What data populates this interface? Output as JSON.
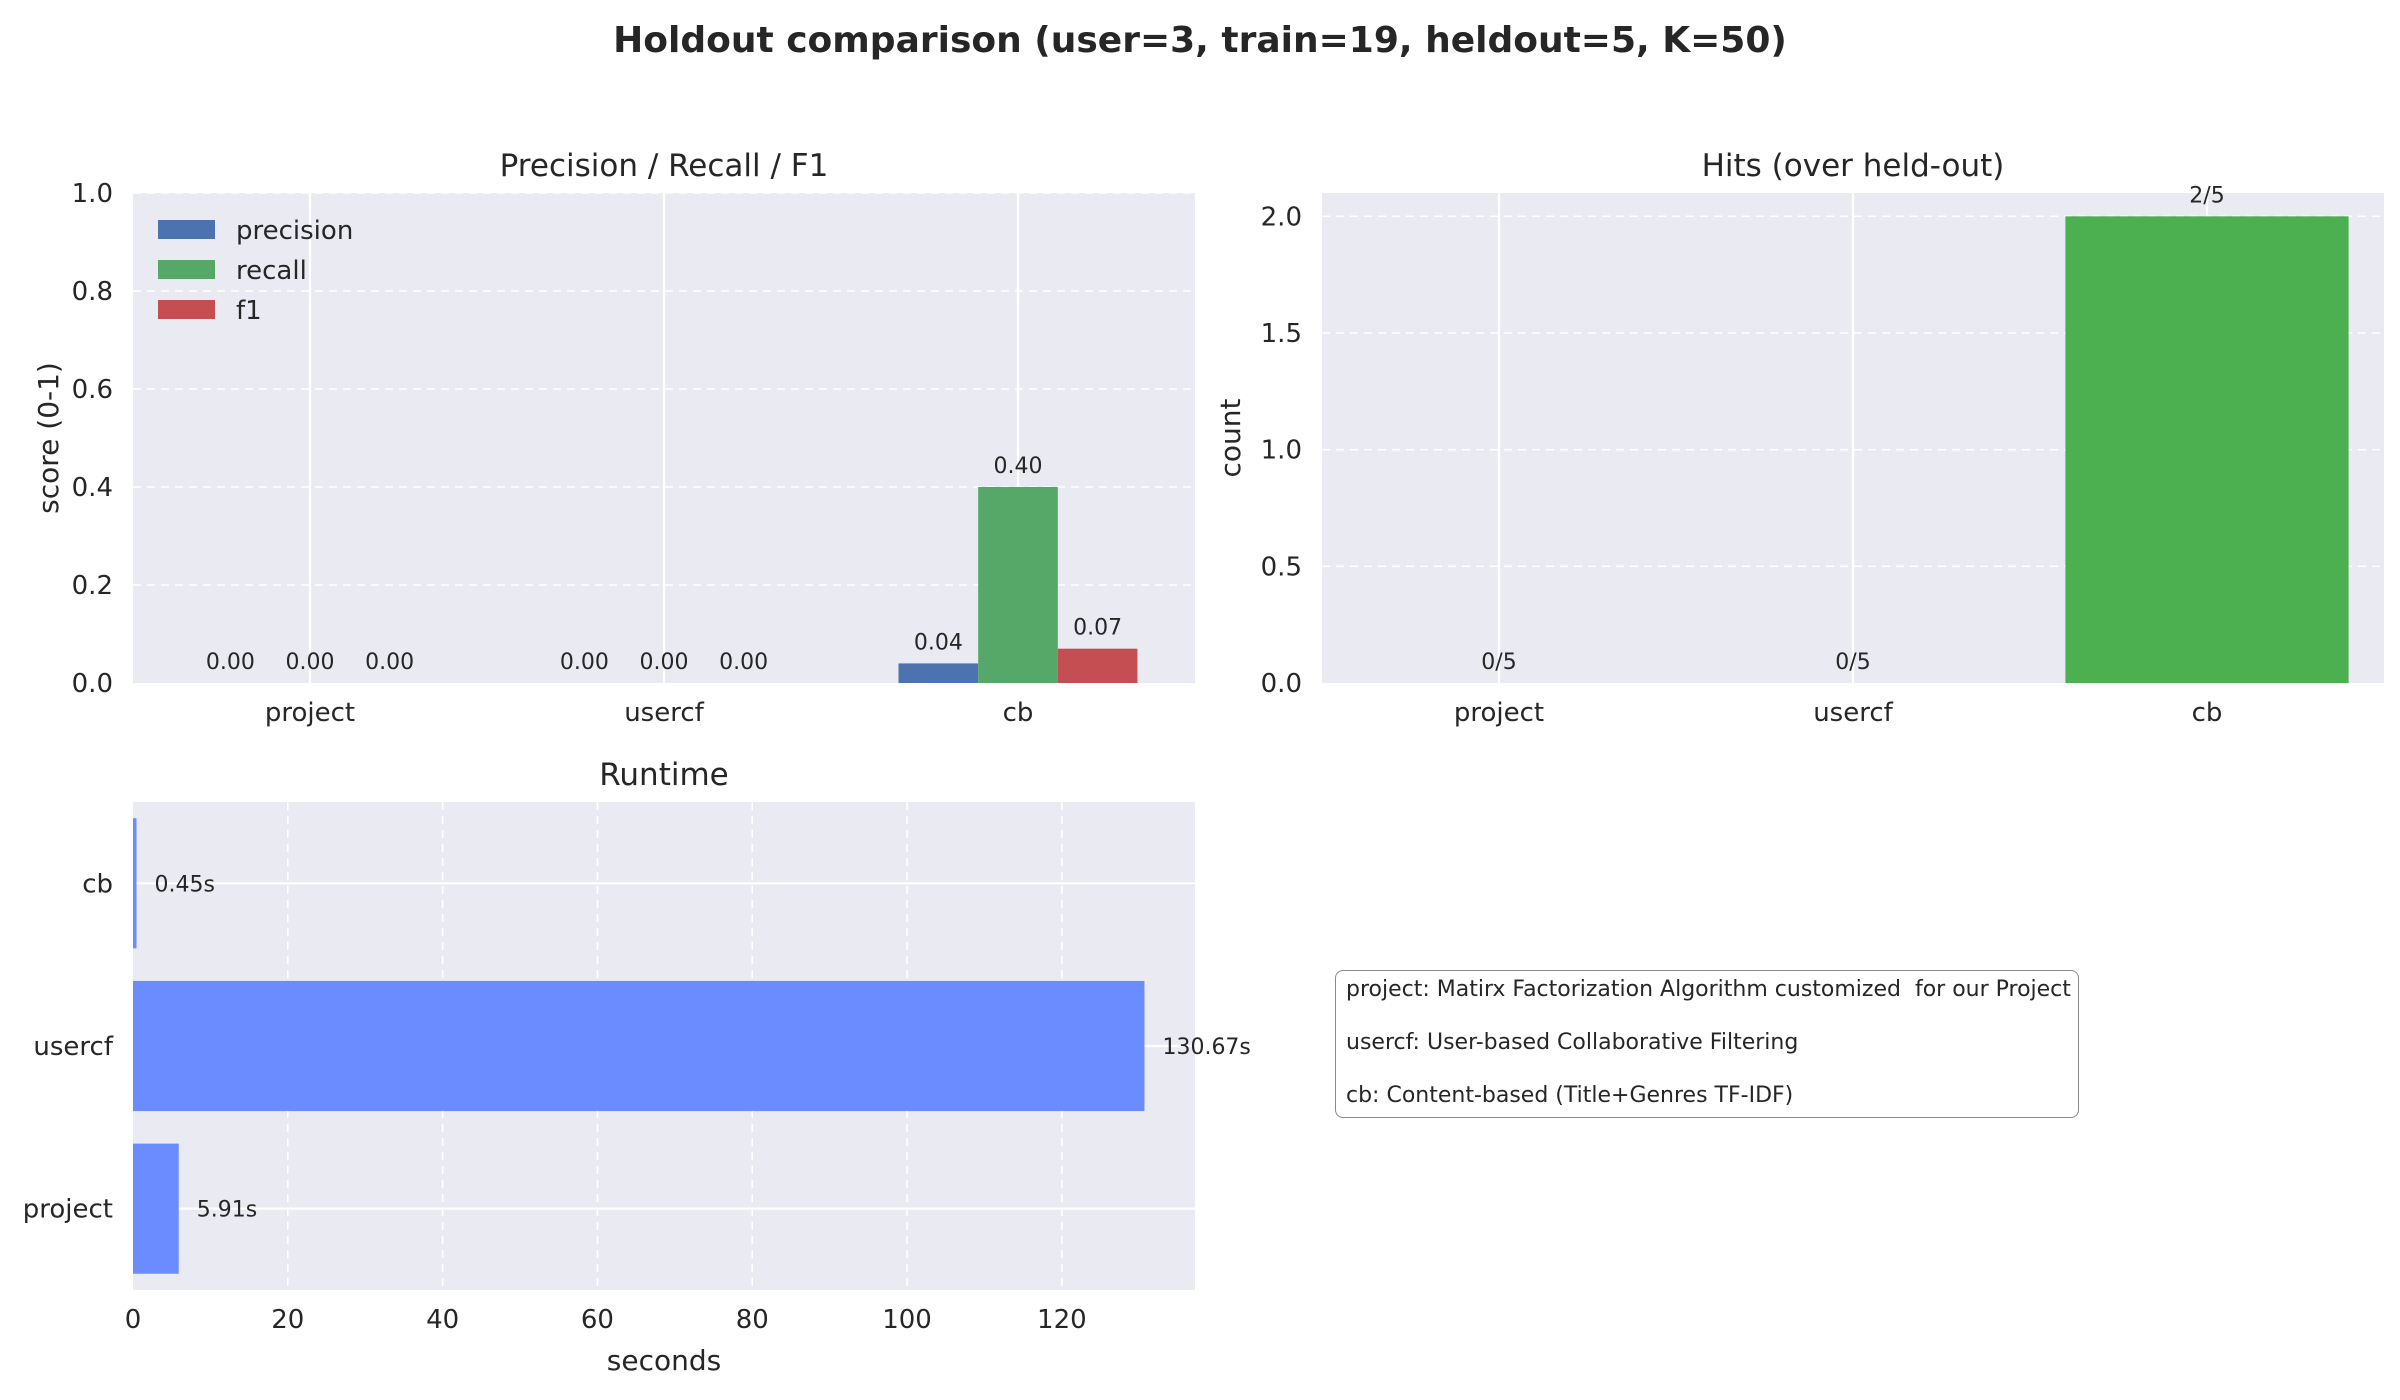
{
  "figure": {
    "title": "Holdout comparison (user=3, train=19, heldout=5, K=50)"
  },
  "chart_data": [
    {
      "type": "bar",
      "title": "Precision / Recall / F1",
      "ylabel": "score (0-1)",
      "xlabel": "",
      "categories": [
        "project",
        "usercf",
        "cb"
      ],
      "series": [
        {
          "name": "precision",
          "values": [
            0.0,
            0.0,
            0.04
          ],
          "labels": [
            "0.00",
            "0.00",
            "0.04"
          ],
          "color": "#4c72b0"
        },
        {
          "name": "recall",
          "values": [
            0.0,
            0.0,
            0.4
          ],
          "labels": [
            "0.00",
            "0.00",
            "0.40"
          ],
          "color": "#55a868"
        },
        {
          "name": "f1",
          "values": [
            0.0,
            0.0,
            0.07
          ],
          "labels": [
            "0.00",
            "0.00",
            "0.07"
          ],
          "color": "#c44e52"
        }
      ],
      "ylim": [
        0,
        1.0
      ],
      "yticks": [
        "0.0",
        "0.2",
        "0.4",
        "0.6",
        "0.8",
        "1.0"
      ],
      "legend": "upper-left",
      "grid": true
    },
    {
      "type": "bar",
      "title": "Hits (over held-out)",
      "ylabel": "count",
      "xlabel": "",
      "categories": [
        "project",
        "usercf",
        "cb"
      ],
      "values": [
        0,
        0,
        2
      ],
      "labels": [
        "0/5",
        "0/5",
        "2/5"
      ],
      "color": "#4caf50",
      "ylim": [
        0,
        2.1
      ],
      "yticks": [
        "0.0",
        "0.5",
        "1.0",
        "1.5",
        "2.0"
      ],
      "grid": true
    },
    {
      "type": "bar",
      "orientation": "horizontal",
      "title": "Runtime",
      "xlabel": "seconds",
      "ylabel": "",
      "categories": [
        "project",
        "usercf",
        "cb"
      ],
      "values": [
        5.91,
        130.67,
        0.45
      ],
      "labels": [
        "5.91s",
        "130.67s",
        "0.45s"
      ],
      "color": "#6b8cff",
      "xlim": [
        0,
        137.2
      ],
      "xticks": [
        "0",
        "20",
        "40",
        "60",
        "80",
        "100",
        "120"
      ],
      "grid": true
    }
  ],
  "notes": [
    "project: Matirx Factorization Algorithm customized  for our Project",
    "usercf: User-based Collaborative Filtering",
    "cb: Content-based (Title+Genres TF-IDF)"
  ]
}
